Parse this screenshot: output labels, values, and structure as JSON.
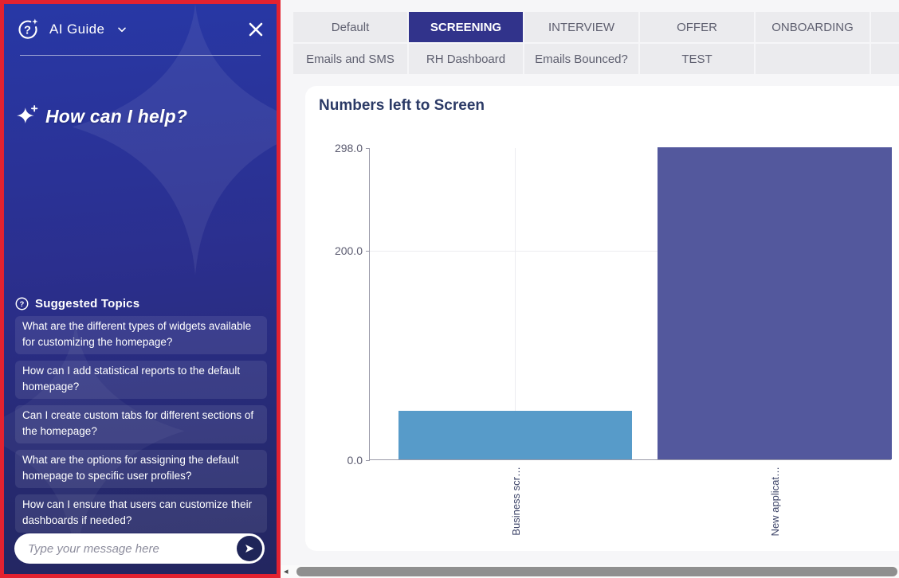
{
  "sidebar": {
    "header": {
      "title": "AI Guide"
    },
    "greeting": "How can I help?",
    "suggested_topics": {
      "title": "Suggested Topics",
      "items": [
        "What are the different types of widgets available for customizing the homepage?",
        "How can I add statistical reports to the default homepage?",
        "Can I create custom tabs for different sections of the homepage?",
        "What are the options for assigning the default homepage to specific user profiles?",
        "How can I ensure that users can customize their dashboards if needed?"
      ]
    },
    "input": {
      "placeholder": "Type your message here"
    },
    "accent_border_color": "#e32230"
  },
  "tabs": {
    "row1": [
      "Default",
      "SCREENING",
      "INTERVIEW",
      "OFFER",
      "ONBOARDING"
    ],
    "row2": [
      "Emails and SMS",
      "RH Dashboard",
      "Emails Bounced?",
      "TEST",
      ""
    ],
    "selected": "SCREENING",
    "selected_color": "#31338b"
  },
  "chart_data": {
    "type": "bar",
    "title": "Numbers left to Screen",
    "categories": [
      "Business scr…",
      "New applicat…"
    ],
    "values": [
      46,
      298
    ],
    "ylim": [
      0,
      298
    ],
    "yticks": [
      0,
      200,
      298
    ],
    "ytick_labels": [
      "0.0",
      "200.0",
      "298.0"
    ],
    "bar_colors": [
      "#579bc9",
      "#53589d"
    ],
    "grid": true,
    "legend_position": "none"
  }
}
